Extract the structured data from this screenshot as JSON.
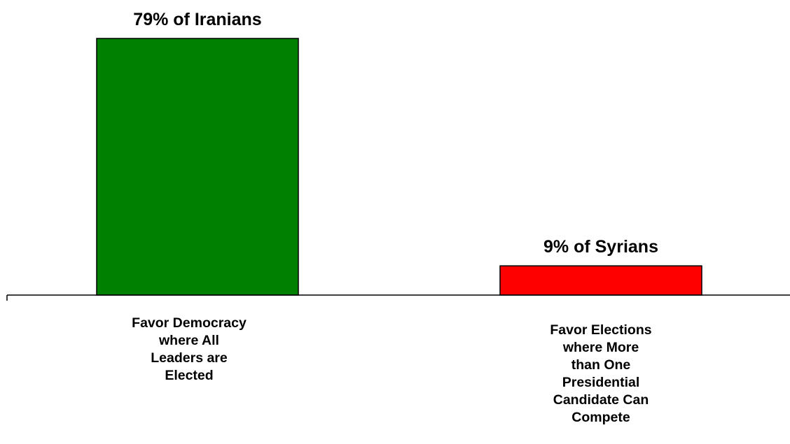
{
  "chart_data": {
    "type": "bar",
    "unit": "%",
    "categories": [
      [
        "Favor Democracy",
        "where All",
        "Leaders are",
        "Elected"
      ],
      [
        "Favor Elections",
        "where More",
        "than One",
        "Presidential",
        "Candidate Can",
        "Compete"
      ]
    ],
    "values": [
      79,
      9
    ],
    "data_labels": [
      "79% of Iranians",
      "9% of Syrians"
    ],
    "colors": [
      "#008000",
      "#ff0000"
    ],
    "ylim": [
      0,
      79
    ],
    "grid": false,
    "legend": "none"
  }
}
